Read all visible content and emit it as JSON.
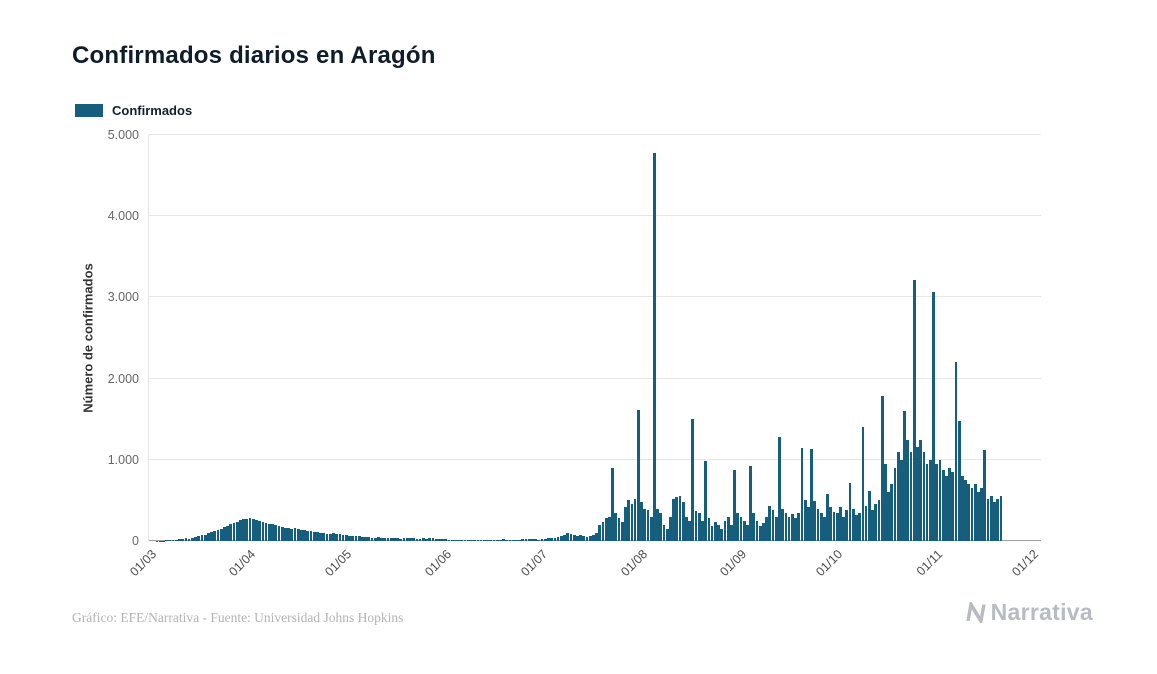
{
  "page": {
    "background": "#ffffff"
  },
  "chart_data": {
    "type": "bar",
    "title": "Confirmados diarios en Aragón",
    "xlabel": "",
    "ylabel": "Número de confirmados",
    "legend_position": "top-left",
    "grid": true,
    "ylim": [
      0,
      5000
    ],
    "bar_color": "#175e7c",
    "start_date": "01/03",
    "x_unit": "day",
    "x_domain_days": 278,
    "y_ticks": [
      {
        "label": "0",
        "value": 0
      },
      {
        "label": "1.000",
        "value": 1000
      },
      {
        "label": "2.000",
        "value": 2000
      },
      {
        "label": "3.000",
        "value": 3000
      },
      {
        "label": "4.000",
        "value": 4000
      },
      {
        "label": "5.000",
        "value": 5000
      }
    ],
    "x_ticks": [
      {
        "label": "01/03",
        "day": 0
      },
      {
        "label": "01/04",
        "day": 31
      },
      {
        "label": "01/05",
        "day": 61
      },
      {
        "label": "01/06",
        "day": 92
      },
      {
        "label": "01/07",
        "day": 122
      },
      {
        "label": "01/08",
        "day": 153
      },
      {
        "label": "01/09",
        "day": 184
      },
      {
        "label": "01/10",
        "day": 214
      },
      {
        "label": "01/11",
        "day": 245
      },
      {
        "label": "01/12",
        "day": 275
      }
    ],
    "series": [
      {
        "name": "Confirmados",
        "values": [
          0,
          0,
          2,
          3,
          5,
          8,
          10,
          14,
          18,
          24,
          30,
          36,
          30,
          42,
          52,
          60,
          72,
          80,
          95,
          105,
          120,
          135,
          150,
          170,
          190,
          205,
          225,
          240,
          255,
          265,
          270,
          280,
          265,
          255,
          245,
          235,
          225,
          215,
          205,
          195,
          185,
          175,
          165,
          158,
          150,
          160,
          148,
          140,
          132,
          125,
          118,
          112,
          106,
          100,
          95,
          90,
          85,
          95,
          88,
          82,
          76,
          70,
          64,
          60,
          56,
          60,
          55,
          50,
          46,
          43,
          40,
          44,
          41,
          38,
          35,
          33,
          36,
          33,
          30,
          33,
          38,
          35,
          32,
          29,
          27,
          31,
          28,
          34,
          32,
          29,
          26,
          24,
          20,
          17,
          15,
          12,
          14,
          16,
          18,
          14,
          11,
          9,
          11,
          13,
          15,
          13,
          11,
          13,
          15,
          18,
          21,
          18,
          15,
          13,
          15,
          18,
          21,
          24,
          26,
          24,
          21,
          18,
          22,
          26,
          31,
          36,
          42,
          50,
          60,
          75,
          95,
          88,
          72,
          62,
          70,
          62,
          55,
          62,
          72,
          100,
          200,
          230,
          280,
          300,
          900,
          350,
          280,
          240,
          420,
          500,
          450,
          520,
          1610,
          480,
          400,
          380,
          300,
          4775,
          390,
          350,
          200,
          150,
          300,
          520,
          540,
          560,
          480,
          300,
          250,
          1500,
          370,
          340,
          250,
          980,
          280,
          180,
          230,
          200,
          150,
          250,
          300,
          200,
          880,
          350,
          300,
          250,
          200,
          920,
          350,
          250,
          180,
          220,
          300,
          430,
          380,
          300,
          1280,
          400,
          350,
          300,
          330,
          280,
          350,
          1150,
          500,
          420,
          1130,
          490,
          400,
          350,
          300,
          580,
          420,
          360,
          350,
          420,
          300,
          380,
          720,
          400,
          320,
          350,
          1400,
          430,
          620,
          380,
          450,
          500,
          1780,
          950,
          600,
          700,
          900,
          1100,
          1000,
          1600,
          1250,
          1100,
          3220,
          1160,
          1250,
          1100,
          950,
          1000,
          3070,
          950,
          1000,
          880,
          800,
          900,
          850,
          2200,
          1480,
          800,
          750,
          700,
          650,
          700,
          600,
          650,
          1120,
          520,
          560,
          480,
          520,
          560
        ]
      }
    ]
  },
  "footer": {
    "attribution": "Gráfico: EFE/Narrativa - Fuente: Universidad Johns Hopkins",
    "brand": "Narrativa"
  }
}
